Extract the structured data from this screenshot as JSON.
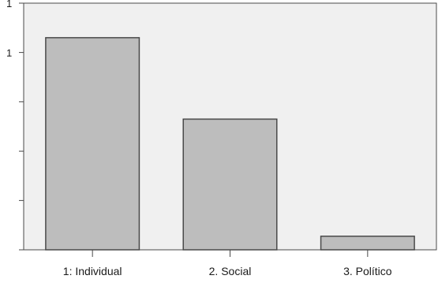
{
  "chart_data": {
    "type": "bar",
    "title": "",
    "xlabel": "",
    "ylabel": "",
    "categories": [
      "1: Individual",
      "2. Social",
      "3. Político"
    ],
    "values": [
      0.86,
      0.53,
      0.055
    ],
    "ylim": [
      0,
      1
    ],
    "y_tick_labels": [
      {
        "value": 1,
        "label": "1"
      },
      {
        "value": 0.8,
        "label": "1"
      },
      {
        "value": 0.6,
        "label": ""
      },
      {
        "value": 0.4,
        "label": ""
      },
      {
        "value": 0.2,
        "label": ""
      },
      {
        "value": 0,
        "label": ""
      }
    ],
    "grid": false,
    "legend": "none",
    "colors": {
      "plot_background": "#f0f0f0",
      "bar_fill": "#bdbdbd",
      "bar_stroke": "#4a4a4a",
      "axis": "#4a4a4a"
    }
  }
}
